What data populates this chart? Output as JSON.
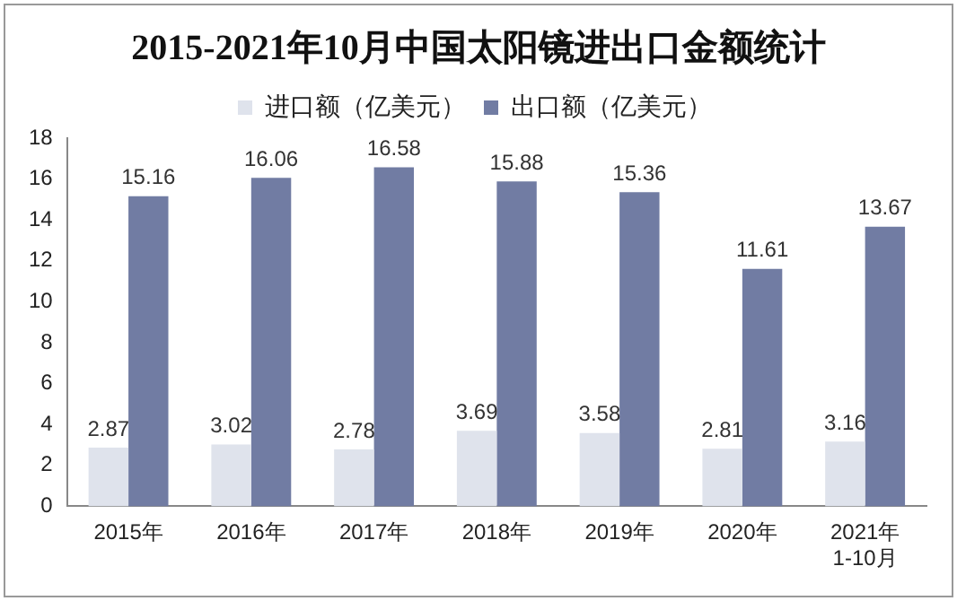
{
  "chart_data": {
    "type": "bar",
    "title": "2015-2021年10月中国太阳镜进出口金额统计",
    "categories": [
      "2015年",
      "2016年",
      "2017年",
      "2018年",
      "2019年",
      "2020年",
      "2021年\n1-10月"
    ],
    "series": [
      {
        "name": "进口额（亿美元）",
        "color": "#dfe3ec",
        "values": [
          2.87,
          3.02,
          2.78,
          3.69,
          3.58,
          2.81,
          3.16
        ]
      },
      {
        "name": "出口额（亿美元）",
        "color": "#717ca3",
        "values": [
          15.16,
          16.06,
          16.58,
          15.88,
          15.36,
          11.61,
          13.67
        ]
      }
    ],
    "ylim": [
      0,
      18
    ],
    "yticks": [
      0,
      2,
      4,
      6,
      8,
      10,
      12,
      14,
      16,
      18
    ],
    "grid": false,
    "legend": "top",
    "data_labels": true
  }
}
